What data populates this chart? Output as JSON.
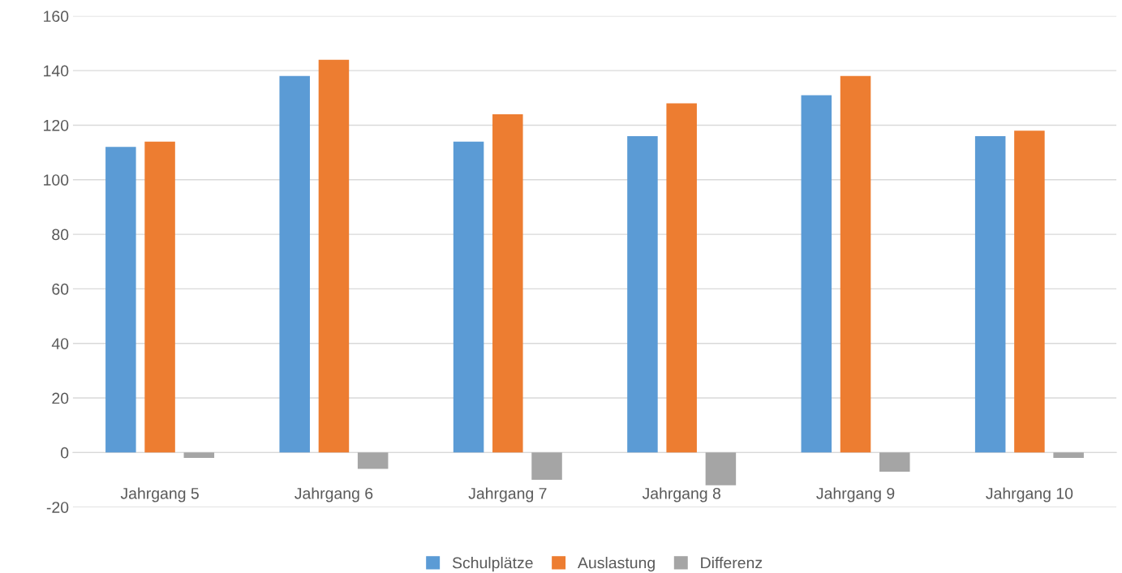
{
  "chart_data": {
    "type": "bar",
    "categories": [
      "Jahrgang 5",
      "Jahrgang 6",
      "Jahrgang 7",
      "Jahrgang 8",
      "Jahrgang 9",
      "Jahrgang 10"
    ],
    "series": [
      {
        "name": "Schulplätze",
        "color": "#5b9bd5",
        "values": [
          112,
          138,
          114,
          116,
          131,
          116
        ]
      },
      {
        "name": "Auslastung",
        "color": "#ed7d31",
        "values": [
          114,
          144,
          124,
          128,
          138,
          118
        ]
      },
      {
        "name": "Differenz",
        "color": "#a5a5a5",
        "values": [
          -2,
          -6,
          -10,
          -12,
          -7,
          -2
        ]
      }
    ],
    "ylim": [
      -20,
      160
    ],
    "yticks": [
      -20,
      0,
      20,
      40,
      60,
      80,
      100,
      120,
      140,
      160
    ],
    "grid": "y",
    "legend": "bottom"
  }
}
